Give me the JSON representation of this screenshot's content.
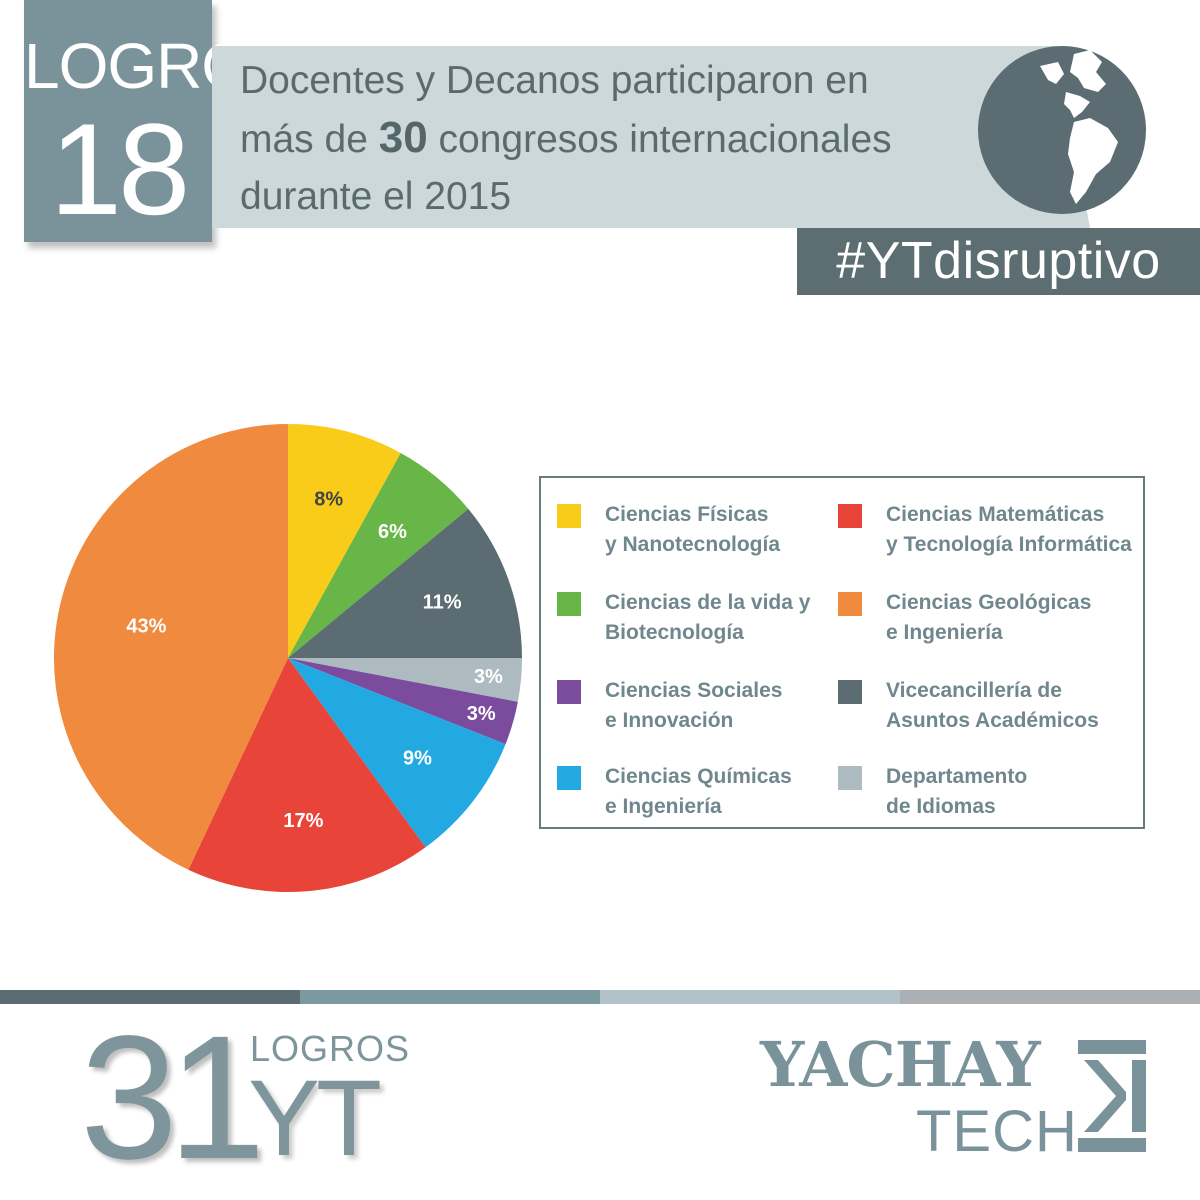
{
  "header": {
    "logro_word": "LOGRO",
    "logro_number": "18",
    "title_line1": "Docentes y Decanos participaron en",
    "title_line2_pre": "más de ",
    "title_line2_bold": "30",
    "title_line2_post": " congresos internacionales",
    "title_line3": "durante el 2015",
    "hashtag": "#YTdisruptivo",
    "globe_icon": "globe-americas-icon"
  },
  "chart_data": {
    "type": "pie",
    "slices": [
      {
        "label": "Ciencias Físicas\ny Nanotecnología",
        "value": 8,
        "display": "8%",
        "color": "#f9cc1a",
        "label_color": "#444444"
      },
      {
        "label": "Ciencias de la vida y\nBiotecnología",
        "value": 6,
        "display": "6%",
        "color": "#68b647",
        "label_color": "#ffffff"
      },
      {
        "label": "Vicecancillería de\nAsuntos Académicos",
        "value": 11,
        "display": "11%",
        "color": "#5b6d72",
        "label_color": "#ffffff"
      },
      {
        "label": "Departamento\nde Idiomas",
        "value": 3,
        "display": "3%",
        "color": "#adbbc1",
        "label_color": "#ffffff"
      },
      {
        "label": "Ciencias Sociales\ne Innovación",
        "value": 3,
        "display": "3%",
        "color": "#7b4b9e",
        "label_color": "#ffffff"
      },
      {
        "label": "Ciencias Químicas\ne Ingeniería",
        "value": 9,
        "display": "9%",
        "color": "#23a9e1",
        "label_color": "#ffffff"
      },
      {
        "label": "Ciencias Matemáticas\ny Tecnología Informática",
        "value": 17,
        "display": "17%",
        "color": "#e8443a",
        "label_color": "#ffffff"
      },
      {
        "label": "Ciencias Geológicas\ne Ingeniería",
        "value": 43,
        "display": "43%",
        "color": "#ef8a3f",
        "label_color": "#ffffff"
      }
    ],
    "legend": [
      {
        "text": "Ciencias Físicas\ny Nanotecnología",
        "color": "#f9cc1a"
      },
      {
        "text": "Ciencias Matemáticas\ny Tecnología Informática",
        "color": "#e8443a"
      },
      {
        "text": "Ciencias de la vida y\nBiotecnología",
        "color": "#68b647"
      },
      {
        "text": "Ciencias Geológicas\ne Ingeniería",
        "color": "#ef8a3f"
      },
      {
        "text": "Ciencias Sociales\ne Innovación",
        "color": "#7b4b9e"
      },
      {
        "text": "Vicecancillería de\nAsuntos Académicos",
        "color": "#5b6d72"
      },
      {
        "text": "Ciencias Químicas\ne Ingeniería",
        "color": "#23a9e1"
      },
      {
        "text": "Departamento\nde Idiomas",
        "color": "#adbbc1"
      }
    ],
    "legend_placement": "right"
  },
  "footer": {
    "stripe_colors": [
      "#5b6d72",
      "#7a9aa0",
      "#b2c2c8",
      "#aab0b3"
    ],
    "count": "31",
    "logros": "LOGROS",
    "yt": "YT",
    "brand_line1": "YACHAY",
    "brand_line2": "TECH",
    "brand_icon": "yachay-tech-logo-icon"
  }
}
